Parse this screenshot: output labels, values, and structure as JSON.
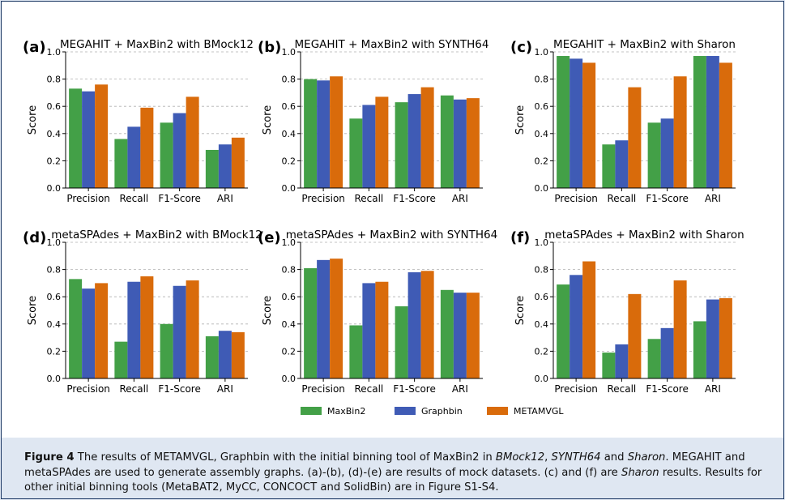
{
  "colors": {
    "MaxBin2": "#43a047",
    "Graphbin": "#3f5bb5",
    "METAMVGL": "#d96b0b"
  },
  "legend": [
    "MaxBin2",
    "Graphbin",
    "METAMVGL"
  ],
  "caption": {
    "figure_label": "Figure 4",
    "text_a": "The results of METAMVGL, Graphbin with the initial binning tool of MaxBin2 in ",
    "it1": "BMock12",
    "sep1": ", ",
    "it2": "SYNTH64",
    "sep2": " and ",
    "it3": "Sharon",
    "text_b": ". MEGAHIT and metaSPAdes are used to generate assembly graphs. (a)-(b), (d)-(e) are results of mock datasets. (c) and (f) are ",
    "it4": "Sharon",
    "text_c": " results. Results for other initial binning tools (MetaBAT2, MyCC, CONCOCT and SolidBin) are in Figure S1-S4."
  },
  "chart_data": [
    {
      "panel": "(a)",
      "type": "bar",
      "title": "MEGAHIT + MaxBin2 with BMock12",
      "ylabel": "Score",
      "ylim": [
        0,
        1.0
      ],
      "grid": true,
      "categories": [
        "Precision",
        "Recall",
        "F1-Score",
        "ARI"
      ],
      "series": [
        {
          "name": "MaxBin2",
          "values": [
            0.73,
            0.36,
            0.48,
            0.28
          ]
        },
        {
          "name": "Graphbin",
          "values": [
            0.71,
            0.45,
            0.55,
            0.32
          ]
        },
        {
          "name": "METAMVGL",
          "values": [
            0.76,
            0.59,
            0.67,
            0.37
          ]
        }
      ]
    },
    {
      "panel": "(b)",
      "type": "bar",
      "title": "MEGAHIT + MaxBin2 with SYNTH64",
      "ylabel": "Score",
      "ylim": [
        0,
        1.0
      ],
      "grid": true,
      "categories": [
        "Precision",
        "Recall",
        "F1-Score",
        "ARI"
      ],
      "series": [
        {
          "name": "MaxBin2",
          "values": [
            0.8,
            0.51,
            0.63,
            0.68
          ]
        },
        {
          "name": "Graphbin",
          "values": [
            0.79,
            0.61,
            0.69,
            0.65
          ]
        },
        {
          "name": "METAMVGL",
          "values": [
            0.82,
            0.67,
            0.74,
            0.66
          ]
        }
      ]
    },
    {
      "panel": "(c)",
      "type": "bar",
      "title": "MEGAHIT + MaxBin2 with Sharon",
      "ylabel": "Score",
      "ylim": [
        0,
        1.0
      ],
      "grid": true,
      "categories": [
        "Precision",
        "Recall",
        "F1-Score",
        "ARI"
      ],
      "series": [
        {
          "name": "MaxBin2",
          "values": [
            0.97,
            0.32,
            0.48,
            0.97
          ]
        },
        {
          "name": "Graphbin",
          "values": [
            0.95,
            0.35,
            0.51,
            0.97
          ]
        },
        {
          "name": "METAMVGL",
          "values": [
            0.92,
            0.74,
            0.82,
            0.92
          ]
        }
      ]
    },
    {
      "panel": "(d)",
      "type": "bar",
      "title": "metaSPAdes + MaxBin2 with BMock12",
      "ylabel": "Score",
      "ylim": [
        0,
        1.0
      ],
      "grid": true,
      "categories": [
        "Precision",
        "Recall",
        "F1-Score",
        "ARI"
      ],
      "series": [
        {
          "name": "MaxBin2",
          "values": [
            0.73,
            0.27,
            0.4,
            0.31
          ]
        },
        {
          "name": "Graphbin",
          "values": [
            0.66,
            0.71,
            0.68,
            0.35
          ]
        },
        {
          "name": "METAMVGL",
          "values": [
            0.7,
            0.75,
            0.72,
            0.34
          ]
        }
      ]
    },
    {
      "panel": "(e)",
      "type": "bar",
      "title": "metaSPAdes + MaxBin2 with SYNTH64",
      "ylabel": "Score",
      "ylim": [
        0,
        1.0
      ],
      "grid": true,
      "categories": [
        "Precision",
        "Recall",
        "F1-Score",
        "ARI"
      ],
      "series": [
        {
          "name": "MaxBin2",
          "values": [
            0.81,
            0.39,
            0.53,
            0.65
          ]
        },
        {
          "name": "Graphbin",
          "values": [
            0.87,
            0.7,
            0.78,
            0.63
          ]
        },
        {
          "name": "METAMVGL",
          "values": [
            0.88,
            0.71,
            0.79,
            0.63
          ]
        }
      ]
    },
    {
      "panel": "(f)",
      "type": "bar",
      "title": "metaSPAdes + MaxBin2 with Sharon",
      "ylabel": "Score",
      "ylim": [
        0,
        1.0
      ],
      "grid": true,
      "categories": [
        "Precision",
        "Recall",
        "F1-Score",
        "ARI"
      ],
      "series": [
        {
          "name": "MaxBin2",
          "values": [
            0.69,
            0.19,
            0.29,
            0.42
          ]
        },
        {
          "name": "Graphbin",
          "values": [
            0.76,
            0.25,
            0.37,
            0.58
          ]
        },
        {
          "name": "METAMVGL",
          "values": [
            0.86,
            0.62,
            0.72,
            0.59
          ]
        }
      ]
    }
  ]
}
